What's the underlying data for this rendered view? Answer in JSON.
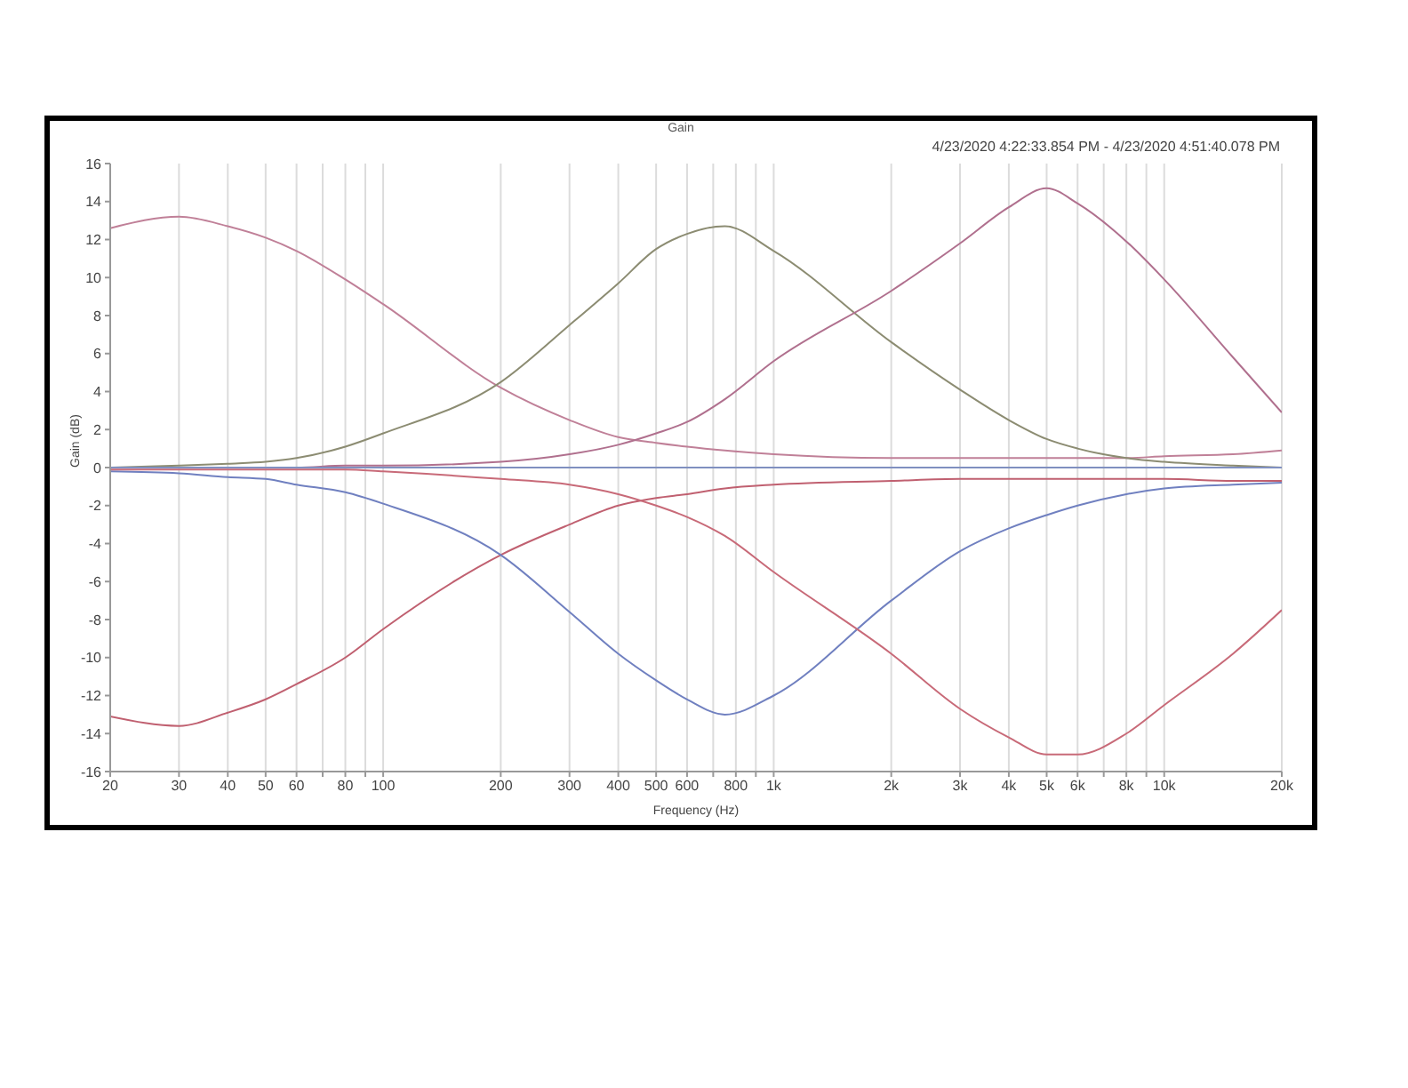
{
  "chart_data": {
    "type": "line",
    "title": "Gain",
    "subtitle": "4/23/2020 4:22:33.854 PM - 4/23/2020 4:51:40.078 PM",
    "xlabel": "Frequency (Hz)",
    "ylabel": "Gain (dB)",
    "x": [
      20,
      30,
      40,
      50,
      60,
      80,
      100,
      200,
      300,
      400,
      500,
      600,
      750,
      1000,
      2000,
      3000,
      4000,
      5000,
      6000,
      8000,
      10000,
      15000,
      20000
    ],
    "series": [
      {
        "color": "#c08098",
        "values": [
          12.6,
          13.2,
          12.7,
          12.1,
          11.4,
          9.9,
          8.6,
          4.2,
          2.5,
          1.6,
          1.3,
          1.1,
          0.9,
          0.7,
          0.5,
          0.5,
          0.5,
          0.5,
          0.5,
          0.5,
          0.6,
          0.7,
          0.9
        ]
      },
      {
        "color": "#8c8c72",
        "values": [
          0,
          0.1,
          0.2,
          0.3,
          0.5,
          1.1,
          1.8,
          4.5,
          7.5,
          9.7,
          11.5,
          12.3,
          12.7,
          11.4,
          6.6,
          4.1,
          2.5,
          1.5,
          1.0,
          0.5,
          0.3,
          0.1,
          0
        ]
      },
      {
        "color": "#b0708e",
        "values": [
          0,
          0,
          0,
          0,
          0,
          0.1,
          0.1,
          0.3,
          0.7,
          1.2,
          1.8,
          2.4,
          3.6,
          5.6,
          9.3,
          11.8,
          13.7,
          14.7,
          13.9,
          11.9,
          9.9,
          5.8,
          2.9
        ]
      },
      {
        "color": "#8090c0",
        "values": [
          0,
          0,
          0,
          0,
          0,
          0,
          0,
          0,
          0,
          0,
          0,
          0,
          0,
          0,
          0,
          0,
          0,
          0,
          0,
          0,
          0,
          0,
          0
        ]
      },
      {
        "color": "#c06070",
        "values": [
          -13.1,
          -13.6,
          -12.9,
          -12.2,
          -11.4,
          -10.0,
          -8.5,
          -4.6,
          -3.0,
          -2.0,
          -1.6,
          -1.4,
          -1.1,
          -0.9,
          -0.7,
          -0.6,
          -0.6,
          -0.6,
          -0.6,
          -0.6,
          -0.6,
          -0.7,
          -0.7
        ]
      },
      {
        "color": "#7080c0",
        "values": [
          -0.2,
          -0.3,
          -0.5,
          -0.6,
          -0.9,
          -1.3,
          -1.9,
          -4.6,
          -7.6,
          -9.8,
          -11.2,
          -12.2,
          -13.0,
          -12.0,
          -7.0,
          -4.4,
          -3.2,
          -2.5,
          -2.0,
          -1.4,
          -1.1,
          -0.9,
          -0.8
        ]
      },
      {
        "color": "#c86a78",
        "values": [
          -0.1,
          -0.1,
          -0.1,
          -0.1,
          -0.1,
          -0.1,
          -0.2,
          -0.6,
          -0.9,
          -1.4,
          -2.0,
          -2.6,
          -3.6,
          -5.5,
          -9.8,
          -12.7,
          -14.2,
          -15.1,
          -15.1,
          -14.0,
          -12.5,
          -9.8,
          -7.5
        ]
      }
    ],
    "log": "x",
    "xlim": [
      20,
      20000
    ],
    "xticks": [
      20,
      30,
      40,
      50,
      60,
      {
        "value": 70,
        "label": null
      },
      80,
      {
        "value": 90,
        "label": null
      },
      100,
      200,
      300,
      400,
      500,
      600,
      {
        "value": 700,
        "label": null
      },
      800,
      {
        "value": 900,
        "label": null
      },
      {
        "value": 1000,
        "label": "1k"
      },
      {
        "value": 2000,
        "label": "2k"
      },
      {
        "value": 3000,
        "label": "3k"
      },
      {
        "value": 4000,
        "label": "4k"
      },
      {
        "value": 5000,
        "label": "5k"
      },
      {
        "value": 6000,
        "label": "6k"
      },
      {
        "value": 7000,
        "label": null
      },
      {
        "value": 8000,
        "label": "8k"
      },
      {
        "value": 9000,
        "label": null
      },
      {
        "value": 10000,
        "label": "10k"
      },
      {
        "value": 20000,
        "label": "20k"
      }
    ],
    "ylim": [
      -16,
      16
    ],
    "yticks": [
      -16,
      -14,
      -12,
      -10,
      -8,
      -6,
      -4,
      -2,
      0,
      2,
      4,
      6,
      8,
      10,
      12,
      14,
      16
    ],
    "grid": true,
    "legend": false,
    "marker": "none",
    "line_style": "solid"
  }
}
